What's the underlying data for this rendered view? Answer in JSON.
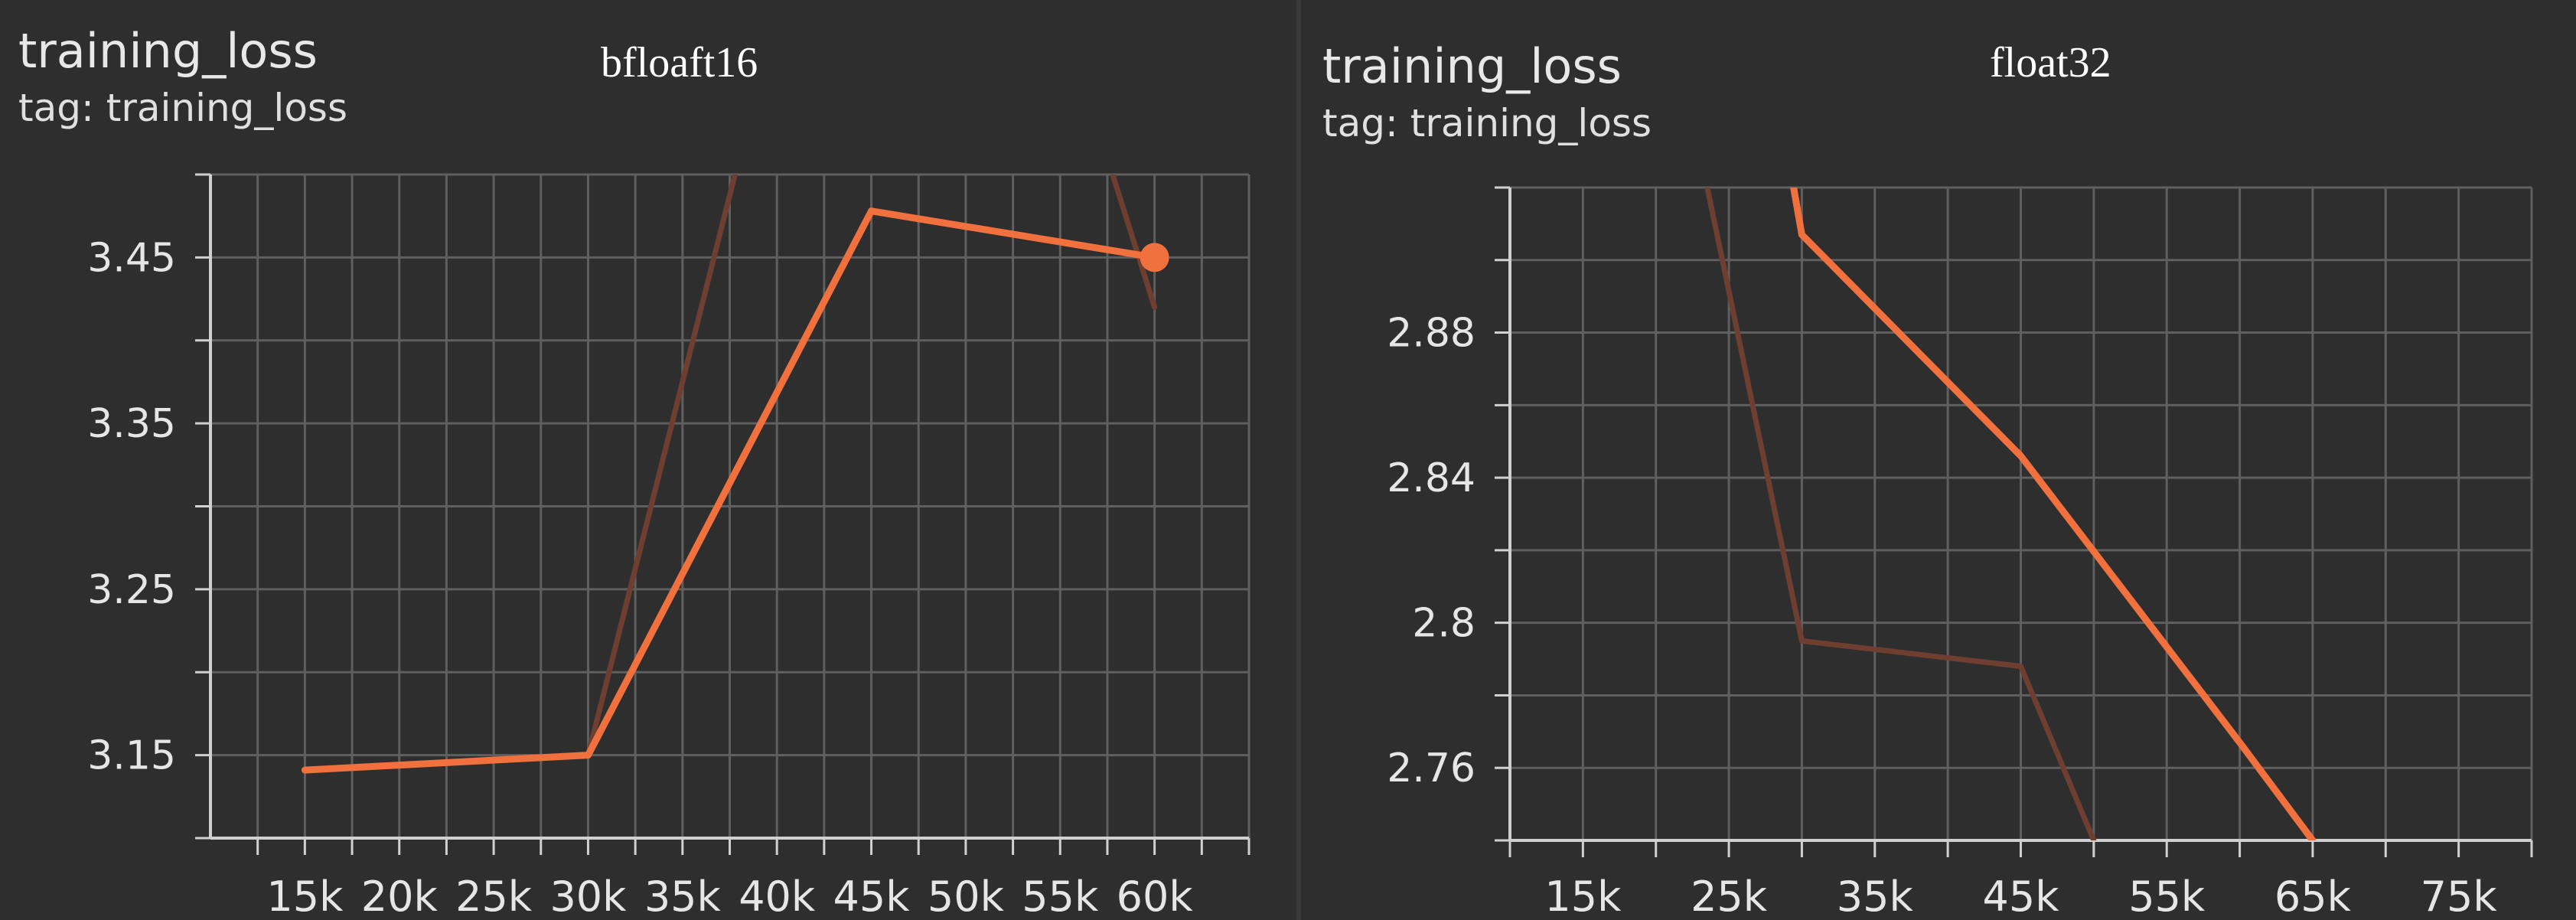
{
  "panels": [
    {
      "title": "training_loss",
      "tag": "tag: training_loss",
      "caption": "bfloaft16"
    },
    {
      "title": "training_loss",
      "tag": "tag: training_loss",
      "caption": "float32"
    }
  ],
  "colors": {
    "background": "#2e2e2e",
    "grid": "#5f5f5f",
    "axis": "#d0d0d0",
    "text": "#e6e6e6",
    "smoothed": "#f0703e",
    "raw": "#6e3f30"
  },
  "chart_data": [
    {
      "type": "line",
      "title": "training_loss",
      "subtitle": "tag: training_loss",
      "annotation": "bfloaft16",
      "xlim": [
        10000,
        65000
      ],
      "ylim": [
        3.1,
        3.5
      ],
      "xticks": [
        "15k",
        "20k",
        "25k",
        "30k",
        "35k",
        "40k",
        "45k",
        "50k",
        "55k",
        "60k"
      ],
      "xtick_values": [
        15000,
        20000,
        25000,
        30000,
        35000,
        40000,
        45000,
        50000,
        55000,
        60000
      ],
      "yticks": [
        "3.15",
        "3.25",
        "3.35",
        "3.45"
      ],
      "ytick_values": [
        3.15,
        3.25,
        3.35,
        3.45
      ],
      "grid": true,
      "series": [
        {
          "style": "smoothed",
          "x": [
            15000,
            30000,
            45000,
            60000
          ],
          "y": [
            3.141,
            3.15,
            3.478,
            3.45
          ],
          "end_marker": true
        },
        {
          "style": "raw",
          "x": [
            30000,
            40000
          ],
          "y": [
            3.15,
            3.6
          ]
        },
        {
          "style": "raw",
          "x": [
            55000,
            60000
          ],
          "y": [
            3.6,
            3.42
          ]
        }
      ]
    },
    {
      "type": "line",
      "title": "training_loss",
      "subtitle": "tag: training_loss",
      "annotation": "float32",
      "xlim": [
        10000,
        80000
      ],
      "ylim": [
        2.74,
        2.92
      ],
      "xticks": [
        "15k",
        "25k",
        "35k",
        "45k",
        "55k",
        "65k",
        "75k"
      ],
      "xtick_values": [
        15000,
        25000,
        35000,
        45000,
        55000,
        65000,
        75000
      ],
      "yticks": [
        "2.76",
        "2.8",
        "2.84",
        "2.88"
      ],
      "ytick_values": [
        2.76,
        2.8,
        2.84,
        2.88
      ],
      "grid": true,
      "series": [
        {
          "style": "smoothed",
          "x": [
            29000,
            30000,
            45000,
            60000,
            65000
          ],
          "y": [
            2.93,
            2.907,
            2.846,
            2.767,
            2.74
          ],
          "end_marker": false
        },
        {
          "style": "raw",
          "x": [
            23000,
            30000,
            45000,
            50000
          ],
          "y": [
            2.93,
            2.795,
            2.788,
            2.74
          ]
        }
      ]
    }
  ]
}
